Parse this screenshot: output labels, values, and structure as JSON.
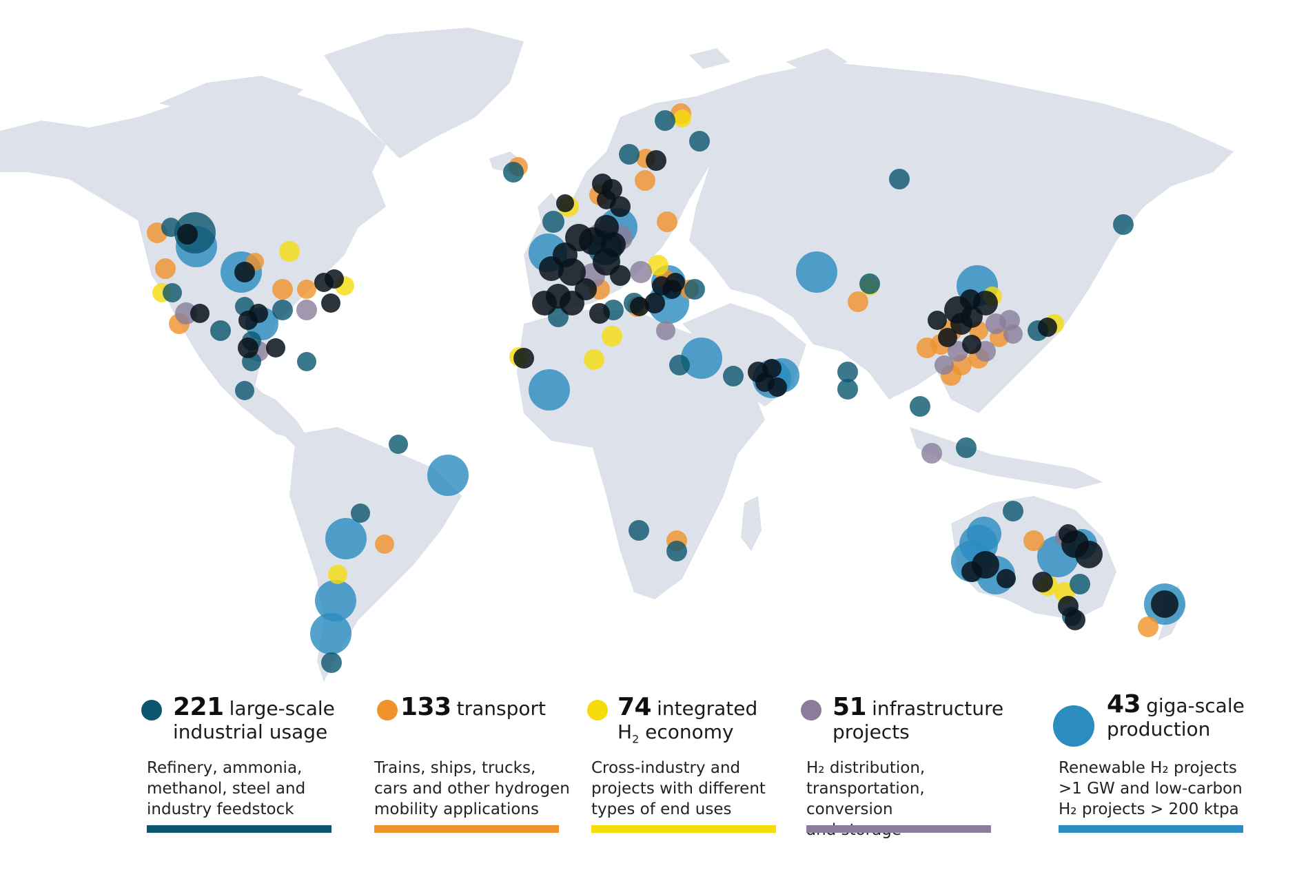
{
  "colors": {
    "land": "#dde1e9",
    "industrial": "#0b566e",
    "transport": "#f0922b",
    "integrated": "#f6dc0c",
    "infrastructure": "#8a7d9a",
    "giga": "#2b8cbf",
    "bar_industrial": "#0b566e",
    "bar_transport": "#f0922b",
    "bar_integrated": "#f6dc0c",
    "bar_infrastructure": "#8a7d9a",
    "bar_giga": "#2b8cbf"
  },
  "legend": {
    "industrial": {
      "count": "221",
      "label_line1": "large-scale",
      "label_line2": "industrial usage",
      "desc": "Refinery, ammonia,\nmethanol, steel and\nindustry feedstock"
    },
    "transport": {
      "count": "133",
      "label_line1": "transport",
      "desc": "Trains, ships, trucks,\ncars and other hydrogen\nmobility applications"
    },
    "integrated": {
      "count": "74",
      "label_line1": "integrated",
      "label_line2a": "H",
      "label_line2_sub": "2",
      "label_line2b": " economy",
      "desc": "Cross-industry and\nprojects with different\ntypes of end uses"
    },
    "infrastructure": {
      "count": "51",
      "label_line1": "infrastructure",
      "label_line2": "projects",
      "desc": "H₂ distribution,\ntransportation, conversion\nand storage"
    },
    "giga": {
      "count": "43",
      "label_line1": "giga-scale",
      "label_line2": "production",
      "desc": "Renewable H₂ projects\n>1 GW and low-carbon\nH₂ projects > 200 ktpa"
    }
  }
}
